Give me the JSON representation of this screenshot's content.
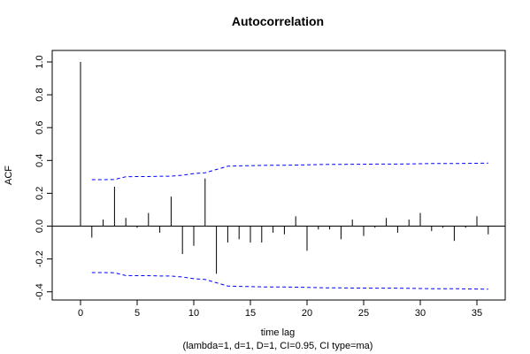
{
  "chart_data": {
    "type": "bar",
    "title": "Autocorrelation",
    "xlabel": "time lag",
    "subtitle": "(lambda=1, d=1, D=1, CI=0.95, CI type=ma)",
    "ylabel": "ACF",
    "xlim": [
      -2.5,
      37.5
    ],
    "ylim": [
      -0.45,
      1.07
    ],
    "x_ticks": [
      0,
      5,
      10,
      15,
      20,
      25,
      30,
      35
    ],
    "y_ticks": [
      -0.4,
      -0.2,
      0.0,
      0.2,
      0.4,
      0.6,
      0.8,
      1.0
    ],
    "lags": [
      0,
      1,
      2,
      3,
      4,
      5,
      6,
      7,
      8,
      9,
      10,
      11,
      12,
      13,
      14,
      15,
      16,
      17,
      18,
      19,
      20,
      21,
      22,
      23,
      24,
      25,
      26,
      27,
      28,
      29,
      30,
      31,
      32,
      33,
      34,
      35,
      36
    ],
    "acf": [
      1.0,
      -0.07,
      0.04,
      0.24,
      0.05,
      -0.01,
      0.08,
      -0.04,
      0.18,
      -0.17,
      -0.12,
      0.29,
      -0.29,
      -0.1,
      -0.08,
      -0.1,
      -0.1,
      -0.04,
      -0.05,
      0.06,
      -0.15,
      -0.02,
      -0.02,
      -0.08,
      0.04,
      -0.06,
      -0.01,
      0.05,
      -0.04,
      0.04,
      0.08,
      -0.03,
      -0.01,
      -0.09,
      -0.01,
      0.06,
      -0.05
    ],
    "ci_lags": [
      1,
      2,
      3,
      4,
      5,
      6,
      7,
      8,
      9,
      10,
      11,
      12,
      13,
      14,
      15,
      16,
      17,
      18,
      19,
      20,
      21,
      22,
      23,
      24,
      25,
      26,
      27,
      28,
      29,
      30,
      31,
      32,
      33,
      34,
      35,
      36
    ],
    "ci_upper": [
      0.283,
      0.283,
      0.284,
      0.301,
      0.302,
      0.302,
      0.304,
      0.304,
      0.31,
      0.32,
      0.325,
      0.345,
      0.365,
      0.367,
      0.368,
      0.37,
      0.371,
      0.371,
      0.372,
      0.373,
      0.375,
      0.376,
      0.376,
      0.377,
      0.377,
      0.378,
      0.378,
      0.378,
      0.379,
      0.38,
      0.381,
      0.381,
      0.381,
      0.382,
      0.383,
      0.384
    ],
    "ci_lower": [
      -0.283,
      -0.283,
      -0.284,
      -0.301,
      -0.302,
      -0.302,
      -0.304,
      -0.304,
      -0.31,
      -0.32,
      -0.325,
      -0.345,
      -0.365,
      -0.367,
      -0.368,
      -0.37,
      -0.371,
      -0.371,
      -0.372,
      -0.373,
      -0.375,
      -0.376,
      -0.376,
      -0.377,
      -0.377,
      -0.378,
      -0.378,
      -0.378,
      -0.379,
      -0.38,
      -0.381,
      -0.381,
      -0.381,
      -0.382,
      -0.383,
      -0.384
    ],
    "colors": {
      "bars": "#000000",
      "ci": "#0000ff",
      "zero_line": "#000000"
    },
    "grid": false,
    "legend": "none"
  }
}
